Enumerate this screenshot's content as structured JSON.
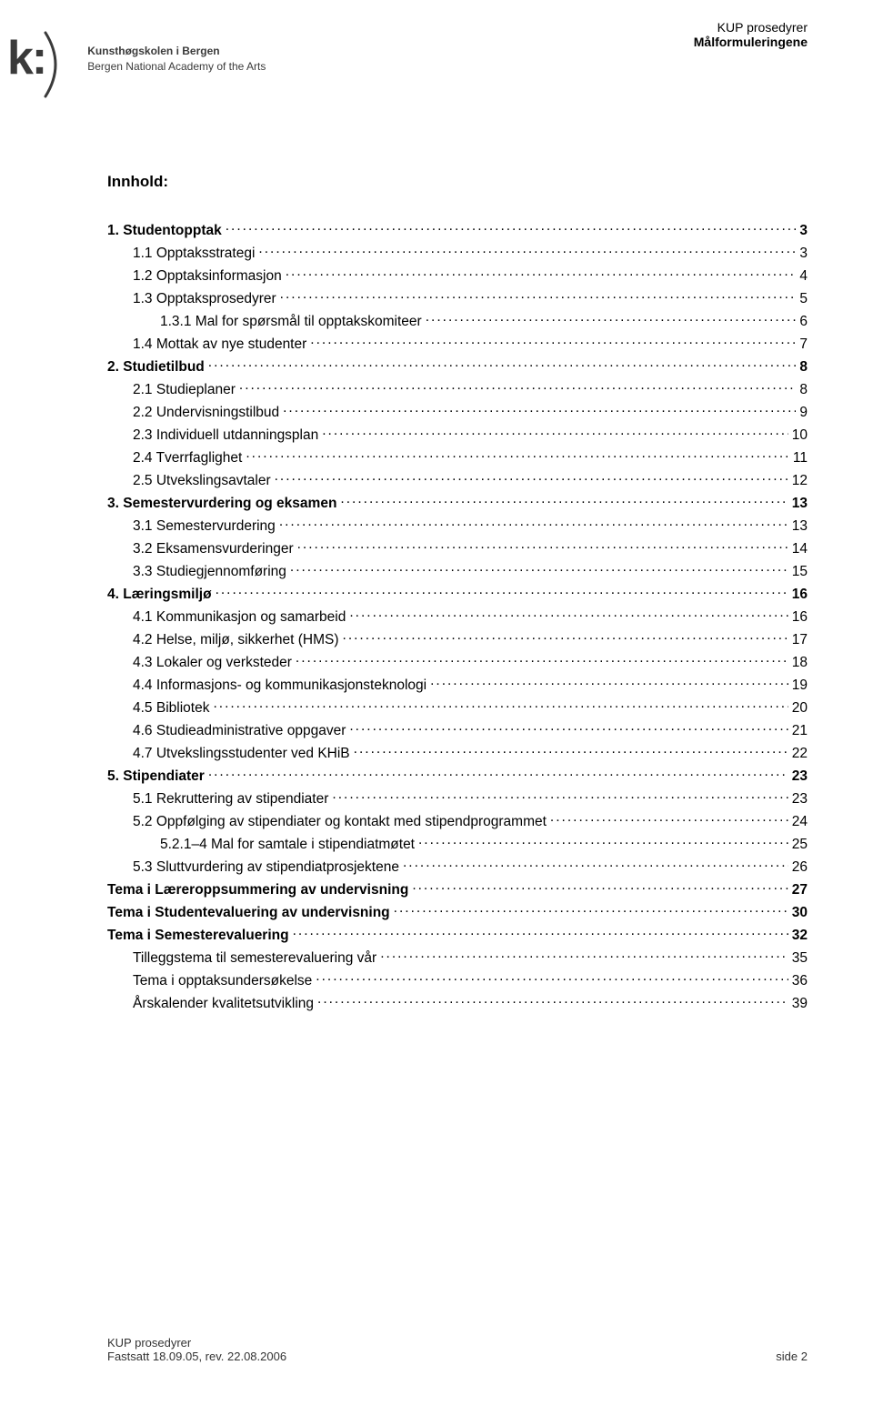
{
  "header": {
    "line1": "KUP prosedyrer",
    "line2": "Målformuleringene"
  },
  "logo": {
    "mark": "k:",
    "name_bold": "Kunsthøgskolen i Bergen",
    "name_sub": "Bergen National Academy of the Arts",
    "colors": {
      "text": "#3a3a3a",
      "arc": "#3a3a3a"
    }
  },
  "toc": {
    "title": "Innhold:",
    "entries": [
      {
        "label": "1. Studentopptak",
        "page": "3",
        "indent": 0,
        "bold": true
      },
      {
        "label": "1.1 Opptaksstrategi",
        "page": "3",
        "indent": 1,
        "bold": false
      },
      {
        "label": "1.2 Opptaksinformasjon",
        "page": "4",
        "indent": 1,
        "bold": false
      },
      {
        "label": "1.3 Opptaksprosedyrer",
        "page": "5",
        "indent": 1,
        "bold": false
      },
      {
        "label": "1.3.1 Mal for spørsmål til opptakskomiteer",
        "page": "6",
        "indent": 2,
        "bold": false
      },
      {
        "label": "1.4 Mottak av nye studenter",
        "page": "7",
        "indent": 1,
        "bold": false
      },
      {
        "label": "2. Studietilbud",
        "page": "8",
        "indent": 0,
        "bold": true
      },
      {
        "label": "2.1 Studieplaner",
        "page": "8",
        "indent": 1,
        "bold": false
      },
      {
        "label": "2.2 Undervisningstilbud",
        "page": "9",
        "indent": 1,
        "bold": false
      },
      {
        "label": "2.3 Individuell utdanningsplan",
        "page": "10",
        "indent": 1,
        "bold": false
      },
      {
        "label": "2.4 Tverrfaglighet",
        "page": "11",
        "indent": 1,
        "bold": false
      },
      {
        "label": "2.5 Utvekslingsavtaler",
        "page": "12",
        "indent": 1,
        "bold": false
      },
      {
        "label": "3. Semestervurdering og eksamen",
        "page": "13",
        "indent": 0,
        "bold": true
      },
      {
        "label": "3.1 Semestervurdering",
        "page": "13",
        "indent": 1,
        "bold": false
      },
      {
        "label": "3.2 Eksamensvurderinger",
        "page": "14",
        "indent": 1,
        "bold": false
      },
      {
        "label": "3.3 Studiegjennomføring",
        "page": "15",
        "indent": 1,
        "bold": false
      },
      {
        "label": "4. Læringsmiljø",
        "page": "16",
        "indent": 0,
        "bold": true
      },
      {
        "label": "4.1 Kommunikasjon og samarbeid",
        "page": "16",
        "indent": 1,
        "bold": false
      },
      {
        "label": "4.2 Helse, miljø, sikkerhet (HMS)",
        "page": "17",
        "indent": 1,
        "bold": false
      },
      {
        "label": "4.3 Lokaler og verksteder",
        "page": "18",
        "indent": 1,
        "bold": false
      },
      {
        "label": "4.4 Informasjons- og kommunikasjonsteknologi",
        "page": "19",
        "indent": 1,
        "bold": false
      },
      {
        "label": "4.5 Bibliotek",
        "page": "20",
        "indent": 1,
        "bold": false
      },
      {
        "label": "4.6 Studieadministrative oppgaver",
        "page": "21",
        "indent": 1,
        "bold": false
      },
      {
        "label": "4.7 Utvekslingsstudenter ved KHiB",
        "page": "22",
        "indent": 1,
        "bold": false
      },
      {
        "label": "5. Stipendiater",
        "page": "23",
        "indent": 0,
        "bold": true
      },
      {
        "label": "5.1 Rekruttering av stipendiater",
        "page": "23",
        "indent": 1,
        "bold": false
      },
      {
        "label": "5.2 Oppfølging av stipendiater og kontakt med stipendprogrammet",
        "page": "24",
        "indent": 1,
        "bold": false
      },
      {
        "label": "5.2.1–4 Mal for samtale i stipendiatmøtet",
        "page": "25",
        "indent": 2,
        "bold": false
      },
      {
        "label": "5.3 Sluttvurdering av stipendiatprosjektene",
        "page": "26",
        "indent": 1,
        "bold": false
      },
      {
        "label": "Tema i Læreroppsummering av undervisning",
        "page": "27",
        "indent": 0,
        "bold": true
      },
      {
        "label": "Tema i Studentevaluering av undervisning",
        "page": "30",
        "indent": 0,
        "bold": true
      },
      {
        "label": "Tema i Semesterevaluering",
        "page": "32",
        "indent": 0,
        "bold": true
      },
      {
        "label": "Tilleggstema til semesterevaluering vår",
        "page": "35",
        "indent": 1,
        "bold": false
      },
      {
        "label": "Tema i opptaksundersøkelse",
        "page": "36",
        "indent": 1,
        "bold": false
      },
      {
        "label": "Årskalender kvalitetsutvikling",
        "page": "39",
        "indent": 1,
        "bold": false
      }
    ]
  },
  "footer": {
    "left_line1": "KUP prosedyrer",
    "left_line2": "Fastsatt 18.09.05, rev. 22.08.2006",
    "right": "side 2"
  },
  "style": {
    "page_bg": "#ffffff",
    "text_color": "#000000",
    "body_fontsize": 15.5,
    "title_fontsize": 17,
    "footer_fontsize": 13,
    "dot_leader_letter_spacing": 2
  }
}
